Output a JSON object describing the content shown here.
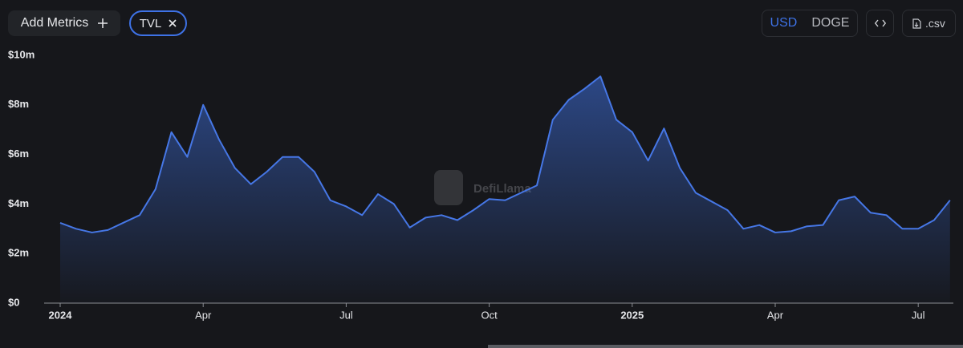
{
  "toolbar": {
    "add_metrics": "Add Metrics",
    "metric_chip": "TVL",
    "currencies": [
      "USD",
      "DOGE"
    ],
    "csv": ".csv"
  },
  "chart_data": {
    "type": "area",
    "watermark": "DefiLlama",
    "categories": [
      "2024",
      null,
      null,
      null,
      null,
      null,
      null,
      null,
      null,
      "Apr",
      null,
      null,
      null,
      null,
      null,
      null,
      null,
      null,
      "Jul",
      null,
      null,
      null,
      null,
      null,
      null,
      null,
      null,
      "Oct",
      null,
      null,
      null,
      null,
      null,
      null,
      null,
      null,
      "2025",
      null,
      null,
      null,
      null,
      null,
      null,
      null,
      null,
      "Apr",
      null,
      null,
      null,
      null,
      null,
      null,
      null,
      null,
      "Jul",
      null,
      null
    ],
    "series": [
      {
        "name": "TVL",
        "color": "#4677e6",
        "values": [
          3240000,
          3000000,
          2850000,
          2950000,
          3250000,
          3550000,
          4600000,
          6900000,
          5900000,
          8000000,
          6600000,
          5450000,
          4800000,
          5300000,
          5900000,
          5900000,
          5300000,
          4150000,
          3900000,
          3550000,
          4400000,
          4000000,
          3050000,
          3450000,
          3550000,
          3350000,
          3750000,
          4200000,
          4150000,
          4450000,
          4750000,
          7400000,
          8200000,
          8650000,
          9150000,
          7400000,
          6900000,
          5750000,
          7050000,
          5450000,
          4450000,
          4100000,
          3750000,
          3000000,
          3150000,
          2850000,
          2900000,
          3100000,
          3150000,
          4150000,
          4300000,
          3650000,
          3550000,
          3000000,
          3000000,
          3350000,
          4150000
        ]
      }
    ],
    "ylim": [
      0,
      10000000
    ],
    "yticks": [
      {
        "value": 0,
        "label": "$0"
      },
      {
        "value": 2000000,
        "label": "$2m"
      },
      {
        "value": 4000000,
        "label": "$4m"
      },
      {
        "value": 6000000,
        "label": "$6m"
      },
      {
        "value": 8000000,
        "label": "$8m"
      },
      {
        "value": 10000000,
        "label": "$10m"
      }
    ],
    "grid": false
  }
}
